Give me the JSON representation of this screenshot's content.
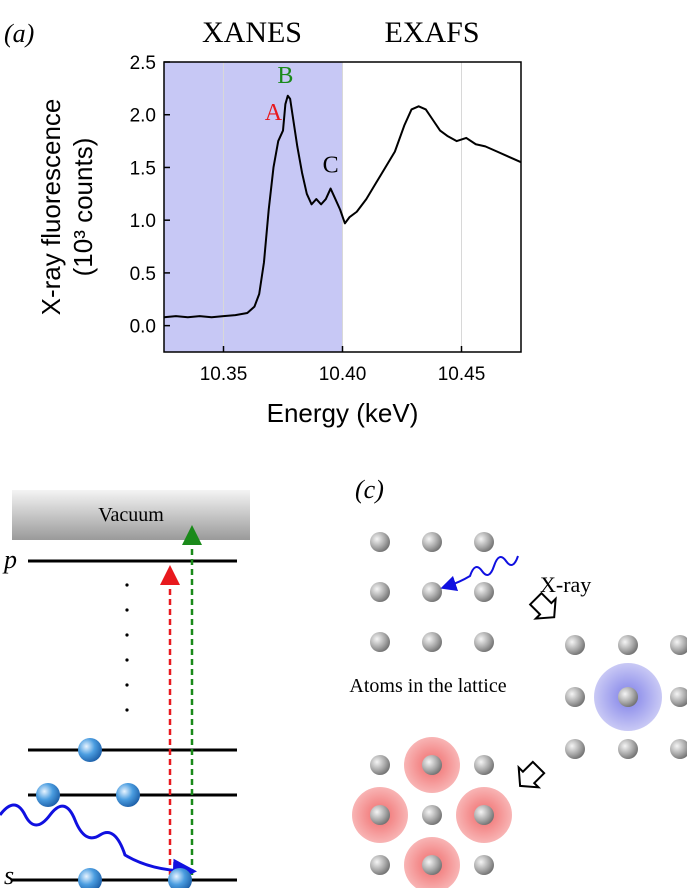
{
  "chart_data": {
    "type": "line",
    "panel_label": "(a)",
    "region_labels": [
      "XANES",
      "EXAFS"
    ],
    "xanes_range": [
      10.325,
      10.4
    ],
    "x_label": "Energy (keV)",
    "y_label": [
      "X-ray fluorescence",
      "(10³ counts)"
    ],
    "xlim": [
      10.325,
      10.475
    ],
    "ylim": [
      -0.25,
      2.5
    ],
    "xticks": [
      10.35,
      {
        "value": 10.4,
        "label": "10.40"
      },
      10.45
    ],
    "yticks": [
      {
        "value": 0,
        "label": "0.0"
      },
      0.5,
      {
        "value": 1,
        "label": "1.0"
      },
      1.5,
      {
        "value": 2,
        "label": "2.0"
      },
      2.5
    ],
    "x": [
      10.325,
      10.33,
      10.335,
      10.34,
      10.345,
      10.35,
      10.355,
      10.36,
      10.363,
      10.365,
      10.367,
      10.369,
      10.371,
      10.373,
      10.375,
      10.376,
      10.377,
      10.378,
      10.379,
      10.381,
      10.383,
      10.385,
      10.387,
      10.389,
      10.391,
      10.393,
      10.395,
      10.397,
      10.399,
      10.401,
      10.403,
      10.406,
      10.41,
      10.414,
      10.418,
      10.422,
      10.426,
      10.429,
      10.432,
      10.435,
      10.438,
      10.441,
      10.444,
      10.448,
      10.452,
      10.456,
      10.46,
      10.465,
      10.47,
      10.475
    ],
    "series": [
      {
        "color": "#000000",
        "values": [
          0.08,
          0.09,
          0.08,
          0.09,
          0.08,
          0.09,
          0.1,
          0.12,
          0.18,
          0.3,
          0.6,
          1.1,
          1.5,
          1.75,
          1.85,
          2.1,
          2.18,
          2.15,
          2.0,
          1.7,
          1.45,
          1.25,
          1.15,
          1.2,
          1.15,
          1.2,
          1.3,
          1.2,
          1.1,
          0.97,
          1.03,
          1.08,
          1.2,
          1.35,
          1.5,
          1.65,
          1.9,
          2.05,
          2.08,
          2.05,
          1.95,
          1.85,
          1.8,
          1.75,
          1.78,
          1.72,
          1.7,
          1.65,
          1.6,
          1.55
        ]
      }
    ],
    "annotations": [
      {
        "text": "A",
        "x": 10.371,
        "y": 1.95,
        "color": "#e8191e"
      },
      {
        "text": "B",
        "x": 10.376,
        "y": 2.3,
        "color": "#1a8a1a"
      },
      {
        "text": "C",
        "x": 10.395,
        "y": 1.45,
        "color": "#000000"
      }
    ]
  },
  "panel_b": {
    "vacuum": "Vacuum",
    "level_p": "p",
    "level_s": "s"
  },
  "panel_c": {
    "label": "(c)",
    "xray": "X-ray",
    "caption": "Atoms in the lattice"
  }
}
